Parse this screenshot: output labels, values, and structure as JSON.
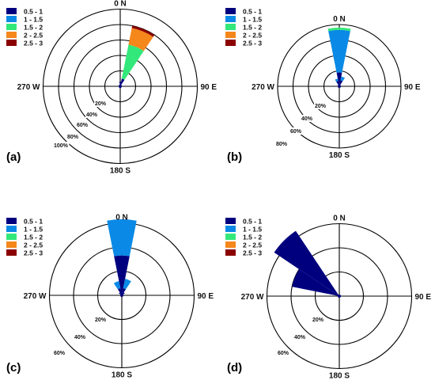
{
  "chart_data": [
    {
      "type": "windrose",
      "panel_label": "(a)",
      "direction_labels": [
        "0 N",
        "90 E",
        "180 S",
        "270 W"
      ],
      "ring_labels": [
        "20%",
        "40%",
        "60%",
        "80%",
        "100%"
      ],
      "ring_values": [
        20,
        40,
        60,
        80,
        100
      ],
      "legend": [
        "0.5 - 1",
        "1 - 1.5",
        "1.5 - 2",
        "2 - 2.5",
        "2.5 - 3"
      ],
      "colors": [
        "#00007f",
        "#0a8ae6",
        "#33e87a",
        "#f5871b",
        "#8b0000"
      ],
      "sectors": [
        {
          "direction_deg": 22.5,
          "segments": [
            10,
            0,
            45,
            22,
            3
          ]
        },
        {
          "direction_deg": 0,
          "segments": [
            6,
            0,
            0,
            0,
            0
          ]
        }
      ]
    },
    {
      "type": "windrose",
      "panel_label": "(b)",
      "direction_labels": [
        "0 N",
        "90 E",
        "180 S",
        "270 W"
      ],
      "ring_labels": [
        "20%",
        "40%",
        "60%",
        "80%"
      ],
      "ring_values": [
        20,
        40,
        60,
        80
      ],
      "legend": [
        "0.5 - 1",
        "1 - 1.5",
        "1.5 - 2",
        "2 - 2.5",
        "2.5 - 3"
      ],
      "colors": [
        "#00007f",
        "#0a8ae6",
        "#33e87a",
        "#f5871b",
        "#8b0000"
      ],
      "sectors": [
        {
          "direction_deg": 0,
          "segments": [
            18,
            55,
            3,
            0,
            0
          ]
        },
        {
          "direction_deg": 22.5,
          "segments": [
            8,
            5,
            0,
            0,
            0
          ]
        },
        {
          "direction_deg": 337.5,
          "segments": [
            7,
            3,
            0,
            0,
            0
          ]
        }
      ]
    },
    {
      "type": "windrose",
      "panel_label": "(c)",
      "direction_labels": [
        "0 N",
        "90 E",
        "180 S",
        "270 W"
      ],
      "ring_labels": [
        "20%",
        "40%",
        "60%"
      ],
      "ring_values": [
        20,
        40,
        60
      ],
      "legend": [
        "0.5 - 1",
        "1 - 1.5",
        "1.5 - 2",
        "2 - 2.5",
        "2.5 - 3"
      ],
      "colors": [
        "#00007f",
        "#0a8ae6",
        "#33e87a",
        "#f5871b",
        "#8b0000"
      ],
      "sectors": [
        {
          "direction_deg": 0,
          "segments": [
            33,
            30,
            0,
            0,
            0
          ]
        },
        {
          "direction_deg": 22.5,
          "segments": [
            6,
            8,
            0,
            0,
            0
          ]
        },
        {
          "direction_deg": 337.5,
          "segments": [
            6,
            6,
            0,
            0,
            0
          ]
        },
        {
          "direction_deg": 45,
          "segments": [
            3,
            0,
            0,
            0,
            0
          ]
        },
        {
          "direction_deg": 315,
          "segments": [
            3,
            0,
            0,
            0,
            0
          ]
        }
      ]
    },
    {
      "type": "windrose",
      "panel_label": "(d)",
      "direction_labels": [
        "0 N",
        "90 E",
        "180 S",
        "270 W"
      ],
      "ring_labels": [
        "20%",
        "40%",
        "60%"
      ],
      "ring_values": [
        20,
        40,
        60
      ],
      "legend": [
        "0.5 - 1",
        "1 - 1.5",
        "1.5 - 2",
        "2 - 2.5",
        "2.5 - 3"
      ],
      "colors": [
        "#00007f",
        "#0a8ae6",
        "#33e87a",
        "#f5871b",
        "#8b0000"
      ],
      "sectors": [
        {
          "direction_deg": 315,
          "segments": [
            65,
            0,
            0,
            0,
            0
          ]
        },
        {
          "direction_deg": 292.5,
          "segments": [
            40,
            0,
            0,
            0,
            0
          ]
        }
      ]
    }
  ]
}
